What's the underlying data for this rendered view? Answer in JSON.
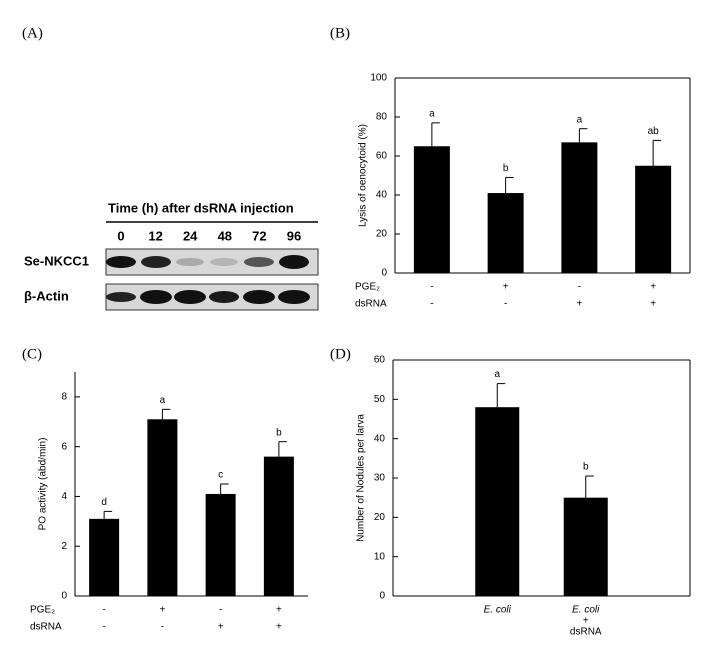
{
  "blot": {
    "label": "(A)",
    "title": "Time (h) after dsRNA injection",
    "times": [
      "0",
      "12",
      "24",
      "48",
      "72",
      "96"
    ],
    "rows": [
      "Se-NKCC1",
      "β-Actin"
    ]
  },
  "chart_data": [
    {
      "type": "bar",
      "label": "(B)",
      "y_label": "Lysis of oenocytoid (%)",
      "categories": [
        null,
        null,
        null,
        null
      ],
      "values": [
        65,
        41,
        67,
        55
      ],
      "errors": [
        12,
        8,
        7,
        13
      ],
      "annotations": [
        "a",
        "b",
        "a",
        "ab"
      ],
      "color": "#000000",
      "treatments": [
        {
          "name": "PGE₂",
          "marks": [
            "-",
            "+",
            "-",
            "+"
          ]
        },
        {
          "name": "dsRNA",
          "marks": [
            "-",
            "-",
            "+",
            "+"
          ]
        }
      ],
      "ylim": [
        0,
        100
      ],
      "yticks": [
        0,
        20,
        40,
        60,
        80,
        100
      ],
      "frame": true
    },
    {
      "type": "bar",
      "label": "(C)",
      "y_label": "PO activity (abd/min)",
      "categories": [
        null,
        null,
        null,
        null
      ],
      "values": [
        3.1,
        7.1,
        4.1,
        5.6
      ],
      "errors": [
        0.3,
        0.4,
        0.4,
        0.6
      ],
      "annotations": [
        "d",
        "a",
        "c",
        "b"
      ],
      "color": "#000000",
      "treatments": [
        {
          "name": "PGE₂",
          "marks": [
            "-",
            "+",
            "-",
            "+"
          ]
        },
        {
          "name": "dsRNA",
          "marks": [
            "-",
            "-",
            "+",
            "+"
          ]
        }
      ],
      "ylim": [
        0,
        9
      ],
      "yticks": [
        0,
        2,
        4,
        6,
        8
      ],
      "frame": false
    },
    {
      "type": "bar",
      "label": "(D)",
      "y_label": "Number of Nodules per larva",
      "categories": [
        [
          "E. coli"
        ],
        [
          "E. coli",
          "+",
          "dsRNA"
        ]
      ],
      "values": [
        48,
        25
      ],
      "errors": [
        6,
        5.5
      ],
      "annotations": [
        "a",
        "b"
      ],
      "color": "#000000",
      "ylim": [
        0,
        60
      ],
      "yticks": [
        0,
        10,
        20,
        30,
        40,
        50,
        60
      ],
      "frame": true
    }
  ]
}
